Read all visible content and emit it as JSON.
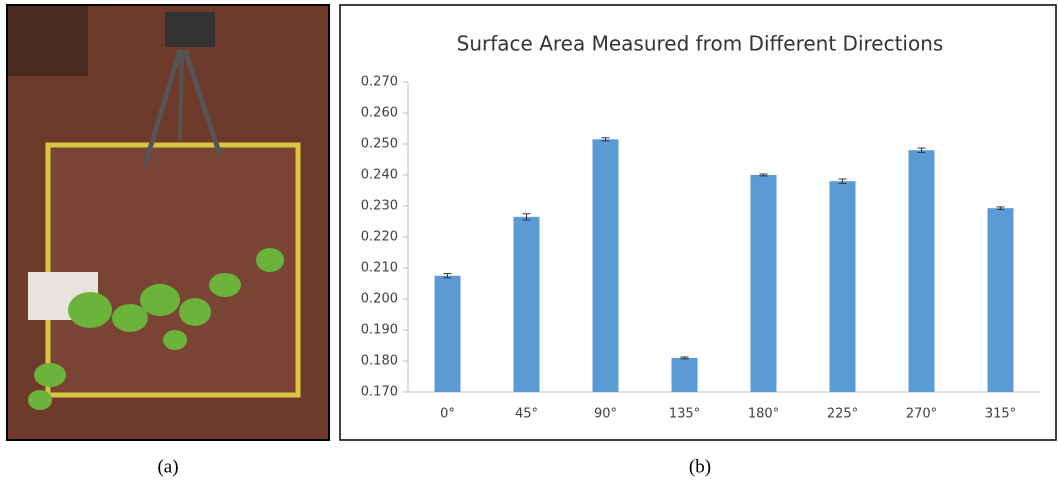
{
  "captions": [
    "(a)",
    "(b)"
  ],
  "chart_data": {
    "type": "bar",
    "title": "Surface Area Measured from Different Directions",
    "categories": [
      "0°",
      "45°",
      "90°",
      "135°",
      "180°",
      "225°",
      "270°",
      "315°"
    ],
    "values": [
      0.2075,
      0.2265,
      0.2515,
      0.181,
      0.24,
      0.238,
      0.248,
      0.2293
    ],
    "errors": [
      0.0007,
      0.001,
      0.0005,
      0.0003,
      0.0003,
      0.0007,
      0.0007,
      0.0004
    ],
    "color": "#5b9bd5",
    "ylim": [
      0.17,
      0.27
    ],
    "yticks": [
      {
        "value": 0.17,
        "label": "0.170"
      },
      {
        "value": 0.18,
        "label": "0.180"
      },
      {
        "value": 0.19,
        "label": "0.190"
      },
      {
        "value": 0.2,
        "label": "0.200"
      },
      {
        "value": 0.21,
        "label": "0.210"
      },
      {
        "value": 0.22,
        "label": "0.220"
      },
      {
        "value": 0.23,
        "label": "0.230"
      },
      {
        "value": 0.24,
        "label": "0.240"
      },
      {
        "value": 0.25,
        "label": "0.250"
      },
      {
        "value": 0.26,
        "label": "0.260"
      },
      {
        "value": 0.27,
        "label": "0.270"
      }
    ],
    "grid": false
  }
}
